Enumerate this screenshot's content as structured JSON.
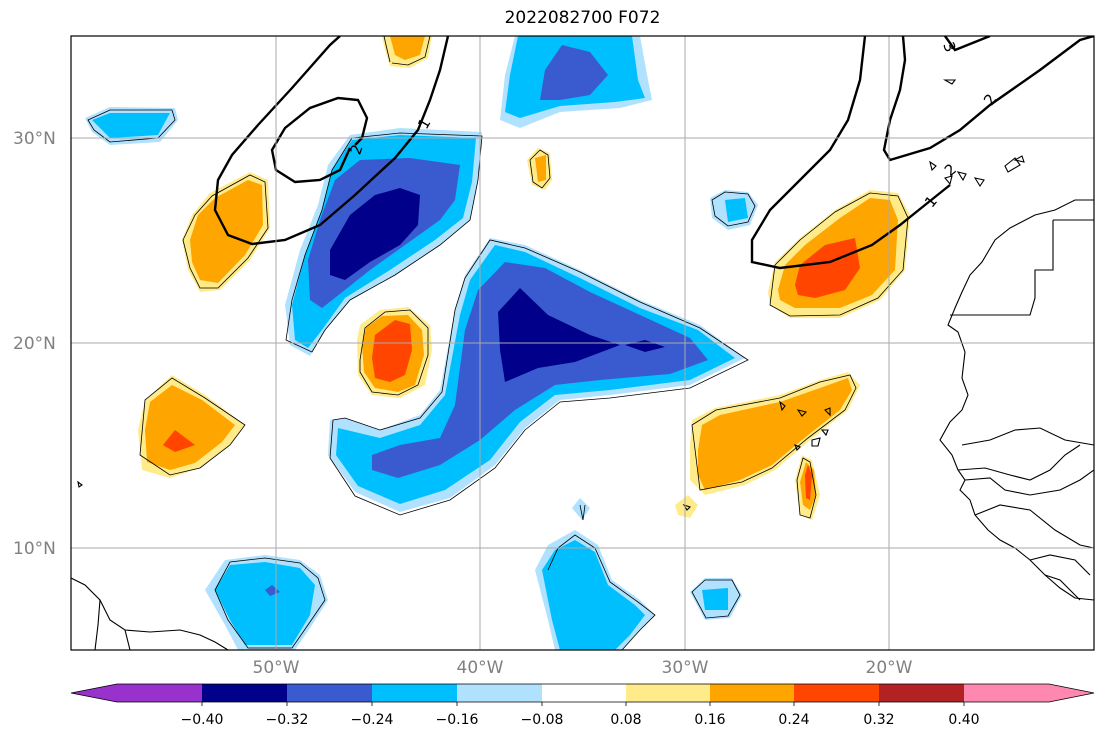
{
  "title": "2022082700 F072",
  "map": {
    "lat_labels": [
      "30°N",
      "20°N",
      "10°N"
    ],
    "lon_labels": [
      "50°W",
      "40°W",
      "30°W",
      "20°W"
    ],
    "contour_labels": [
      "1",
      "2",
      "2",
      "1",
      "2",
      "3"
    ]
  },
  "colorbar": {
    "tick_labels": [
      "−0.40",
      "−0.32",
      "−0.24",
      "−0.16",
      "−0.08",
      "0.08",
      "0.16",
      "0.24",
      "0.32",
      "0.40"
    ],
    "colors": {
      "lt_neg_048": "#9932cc",
      "neg_040_032": "#00008b",
      "neg_032_024": "#3a5bd0",
      "neg_024_016": "#00bfff",
      "neg_016_008": "#b0e2ff",
      "neutral": "#ffffff",
      "pos_008_016": "#ffeb8a",
      "pos_016_024": "#ffa500",
      "pos_024_032": "#ff4500",
      "pos_032_040": "#b22222",
      "gt_040": "#ff88b0"
    }
  }
}
